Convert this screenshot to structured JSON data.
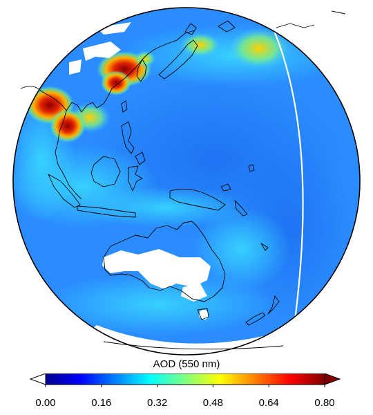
{
  "colorbar": {
    "title": "AOD (550 nm)",
    "range": [
      0.0,
      0.8
    ],
    "ticks": [
      "0.00",
      "0.16",
      "0.32",
      "0.48",
      "0.64",
      "0.80"
    ],
    "extend": "both",
    "colormap": "jet",
    "colors": [
      "#00008f",
      "#0000ff",
      "#0080ff",
      "#00ffff",
      "#80ff80",
      "#ffff00",
      "#ff8000",
      "#ff0000",
      "#800000"
    ],
    "under_color": "#ffffff",
    "over_color": "#800000"
  },
  "map": {
    "projection": "orthographic",
    "background_aod_color": "#2a8cff",
    "no_data_color": "#ffffff",
    "coastline_color": "#000000"
  }
}
